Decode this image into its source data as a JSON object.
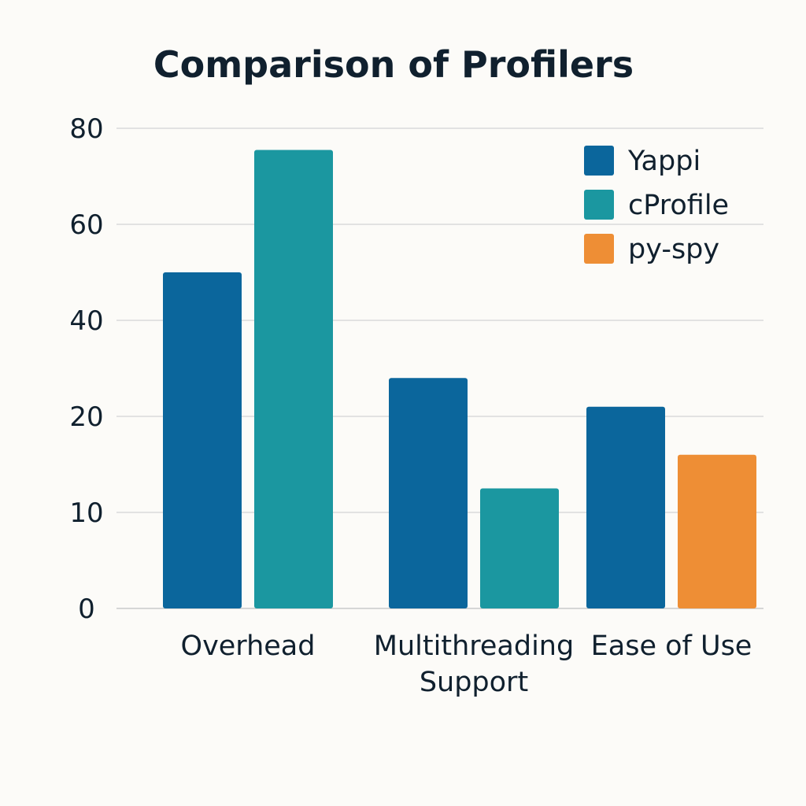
{
  "chart_data": {
    "type": "bar",
    "title": "Comparison of Profilers",
    "xlabel": "",
    "ylabel": "",
    "y_ticks": [
      0,
      10,
      20,
      40,
      60,
      80
    ],
    "ylim": [
      0,
      80
    ],
    "grid": true,
    "legend_position": "top-right",
    "categories": [
      "Overhead",
      "Multithreading Support",
      "Ease of Use"
    ],
    "category_lines": [
      [
        "Overhead"
      ],
      [
        "Multithreading",
        "Support"
      ],
      [
        "Ease of Use"
      ]
    ],
    "series": [
      {
        "name": "Yappi",
        "color": "#0b669c",
        "values": [
          50,
          28,
          22
        ]
      },
      {
        "name": "cProfile",
        "color": "#1b97a0",
        "values": [
          75.5,
          12.5,
          null
        ]
      },
      {
        "name": "py-spy",
        "color": "#ee8e35",
        "values": [
          null,
          null,
          16
        ]
      }
    ]
  }
}
